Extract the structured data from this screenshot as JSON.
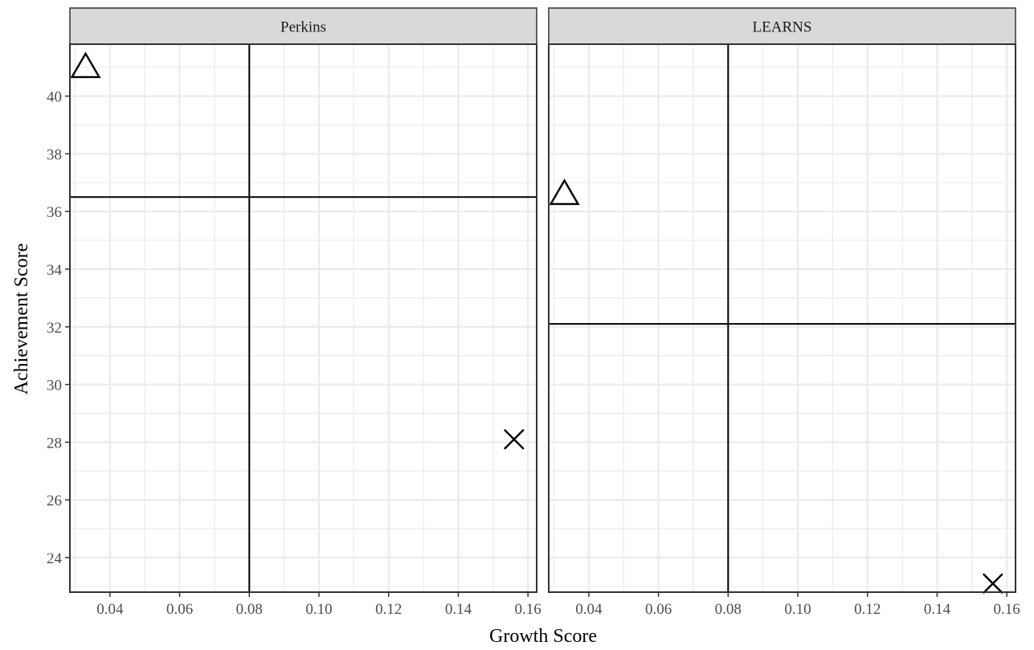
{
  "chart_data": {
    "type": "scatter",
    "xlabel": "Growth Score",
    "ylabel": "Achievement Score",
    "xlim": [
      0.0285,
      0.1625
    ],
    "ylim": [
      22.8,
      41.8
    ],
    "x_ticks": [
      0.04,
      0.06,
      0.08,
      0.1,
      0.12,
      0.14,
      0.16
    ],
    "x_tick_labels": [
      "0.04",
      "0.06",
      "0.08",
      "0.10",
      "0.12",
      "0.14",
      "0.16"
    ],
    "y_ticks": [
      24,
      26,
      28,
      30,
      32,
      34,
      36,
      38,
      40
    ],
    "y_tick_labels": [
      "24",
      "26",
      "28",
      "30",
      "32",
      "34",
      "36",
      "38",
      "40"
    ],
    "grid": true,
    "panels": [
      {
        "facet": "Perkins",
        "vline_x": 0.08,
        "hline_y": 36.5,
        "points": [
          {
            "x": 0.033,
            "y": 41.0,
            "shape": "triangle"
          },
          {
            "x": 0.156,
            "y": 28.1,
            "shape": "cross"
          }
        ]
      },
      {
        "facet": "LEARNS",
        "vline_x": 0.08,
        "hline_y": 32.1,
        "points": [
          {
            "x": 0.033,
            "y": 36.6,
            "shape": "triangle"
          },
          {
            "x": 0.156,
            "y": 23.1,
            "shape": "cross"
          }
        ]
      }
    ],
    "colors": {
      "strip_fill": "#d9d9d9",
      "panel_border": "#333333",
      "grid": "#ebebeb",
      "marker": "#000000"
    }
  }
}
